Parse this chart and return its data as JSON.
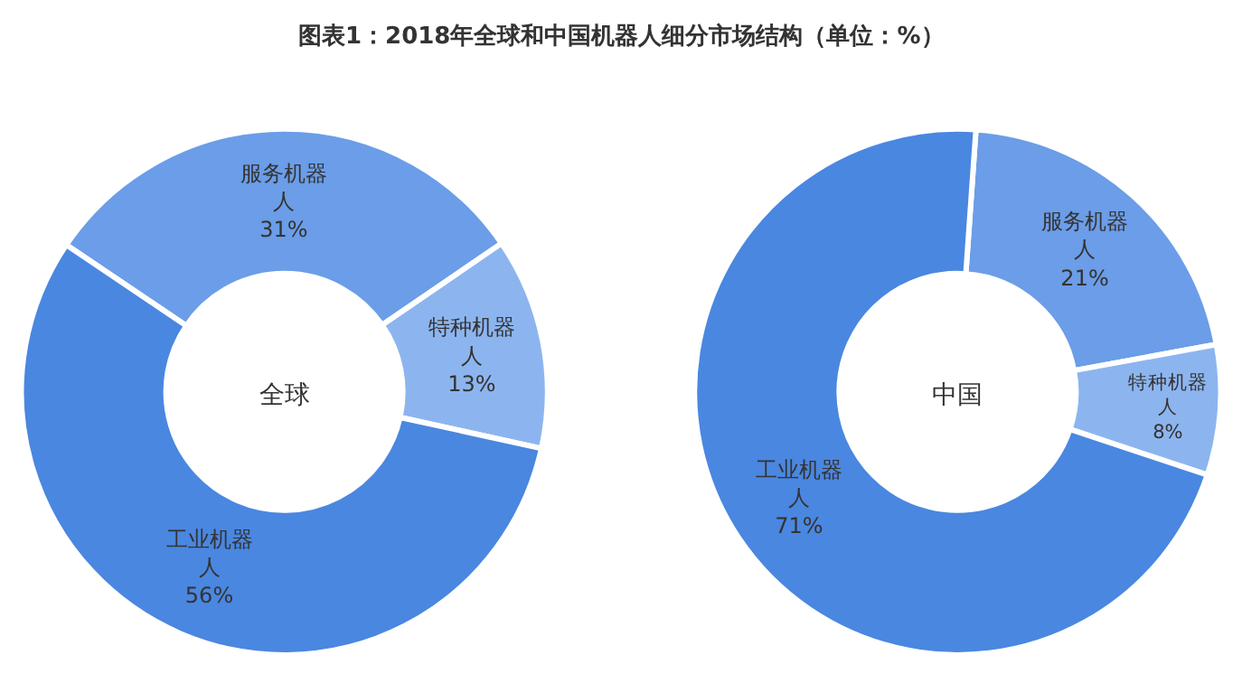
{
  "chart_data": [
    {
      "type": "donut",
      "title": "全球",
      "annotations": [
        "图表1：2018年全球和中国机器人细分市场结构（单位：%）"
      ],
      "categories": [
        "服务机器人",
        "特种机器人",
        "工业机器人"
      ],
      "values": [
        31,
        13,
        56
      ],
      "value_labels": [
        "31%",
        "13%",
        "56%"
      ],
      "colors": [
        "#6b9de8",
        "#8cb5ef",
        "#4a87e0"
      ]
    },
    {
      "type": "donut",
      "title": "中国",
      "categories": [
        "服务机器人",
        "特种机器人",
        "工业机器人"
      ],
      "values": [
        21,
        8,
        71
      ],
      "value_labels": [
        "21%",
        "8%",
        "71%"
      ],
      "colors": [
        "#6b9de8",
        "#8cb5ef",
        "#4a87e0"
      ]
    }
  ]
}
